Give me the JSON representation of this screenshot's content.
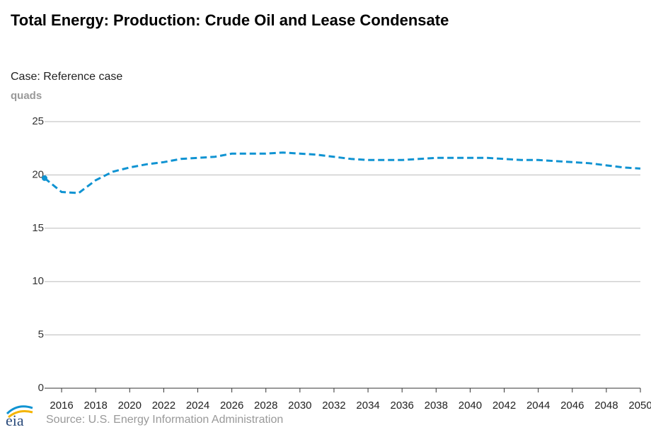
{
  "chart_data": {
    "type": "line",
    "title": "Total Energy: Production: Crude Oil and Lease Condensate",
    "subtitle": "Case: Reference case",
    "y_label": "quads",
    "source": "Source: U.S. Energy Information Administration",
    "logo": "eia",
    "x": [
      2015,
      2016,
      2017,
      2018,
      2019,
      2020,
      2021,
      2022,
      2023,
      2024,
      2025,
      2026,
      2027,
      2028,
      2029,
      2030,
      2031,
      2032,
      2033,
      2034,
      2035,
      2036,
      2037,
      2038,
      2039,
      2040,
      2041,
      2042,
      2043,
      2044,
      2045,
      2046,
      2047,
      2048,
      2049,
      2050
    ],
    "values": [
      19.7,
      18.4,
      18.3,
      19.5,
      20.3,
      20.7,
      21.0,
      21.2,
      21.5,
      21.6,
      21.7,
      22.0,
      22.0,
      22.0,
      22.1,
      22.0,
      21.9,
      21.7,
      21.5,
      21.4,
      21.4,
      21.4,
      21.5,
      21.6,
      21.6,
      21.6,
      21.6,
      21.5,
      21.4,
      21.4,
      21.3,
      21.2,
      21.1,
      20.9,
      20.7,
      20.6
    ],
    "color": "#0f93d2",
    "dashed": true,
    "xlim": [
      2015,
      2050
    ],
    "xticks": [
      2016,
      2018,
      2020,
      2022,
      2024,
      2026,
      2028,
      2030,
      2032,
      2034,
      2036,
      2038,
      2040,
      2042,
      2044,
      2046,
      2048,
      2050
    ],
    "ylim": [
      0,
      25
    ],
    "yticks": [
      0,
      5,
      10,
      15,
      20,
      25
    ],
    "grid": true
  }
}
